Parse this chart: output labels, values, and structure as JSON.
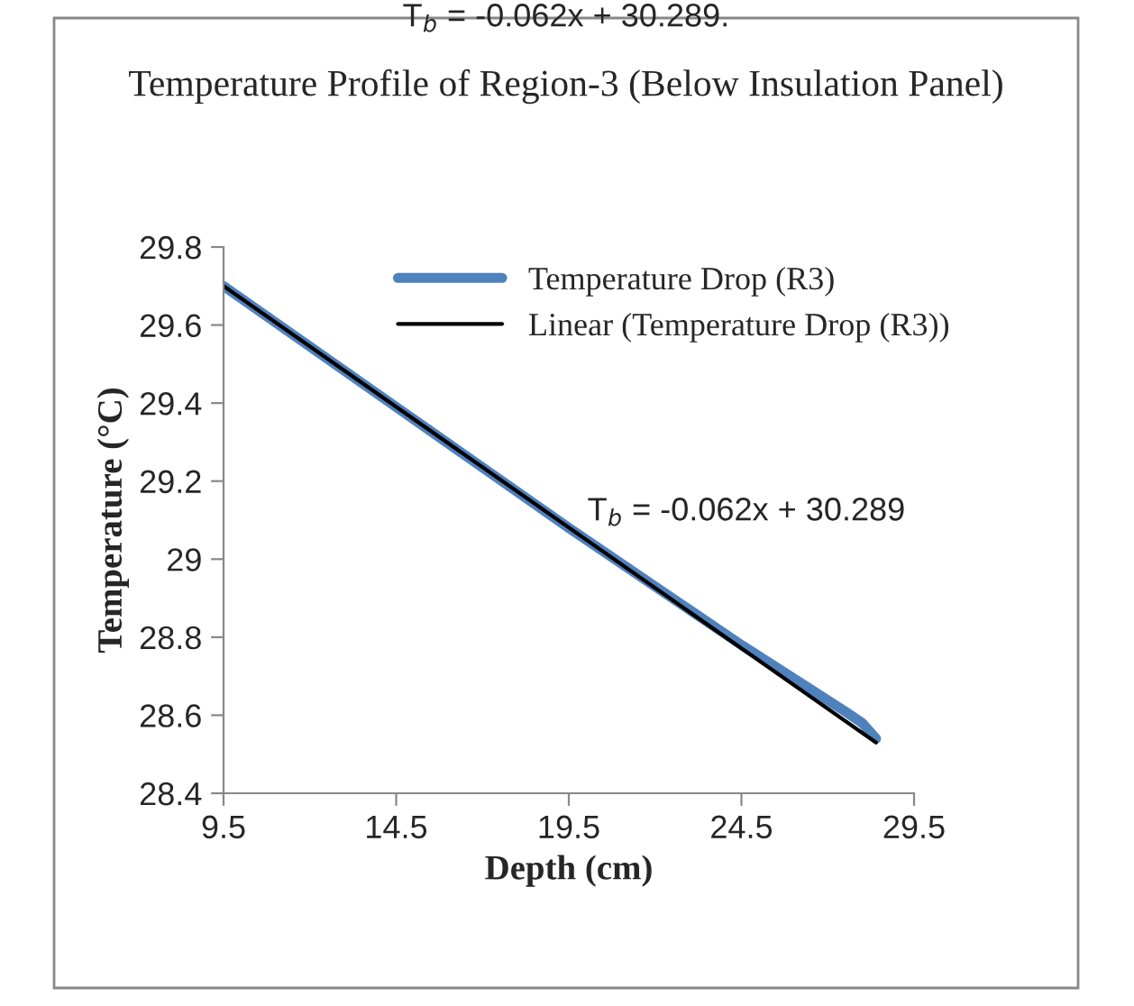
{
  "chart_data": {
    "type": "line",
    "title": "Temperature Profile of Region-3 (Below Insulation Panel)",
    "xlabel": "Depth (cm)",
    "ylabel": "Temperature (°C)",
    "annotations": [
      "T$_{b}$ = -0.062x + 30.289.",
      "T$_{b}$ = -0.062x + 30.289"
    ],
    "series": [
      {
        "name": "Temperature Drop (R3)",
        "color": "#4f81bd",
        "x": [
          9.5,
          14.5,
          19.5,
          24.5,
          27.5,
          28.0,
          28.4
        ],
        "values": [
          29.7,
          29.39,
          29.08,
          28.78,
          28.61,
          28.58,
          28.54
        ]
      },
      {
        "name": "Linear (Temperature Drop (R3))",
        "color": "#000000",
        "x": [
          9.5,
          28.4
        ],
        "values": [
          29.7,
          28.53
        ]
      }
    ],
    "xlim": [
      9.5,
      29.5
    ],
    "xticks": [
      9.5,
      14.5,
      19.5,
      24.5,
      29.5
    ],
    "ylim": [
      28.4,
      29.8
    ],
    "yticks": [
      28.4,
      28.6,
      28.8,
      29,
      29.2,
      29.4,
      29.6,
      29.8
    ],
    "grid": false,
    "legend": "top right"
  }
}
